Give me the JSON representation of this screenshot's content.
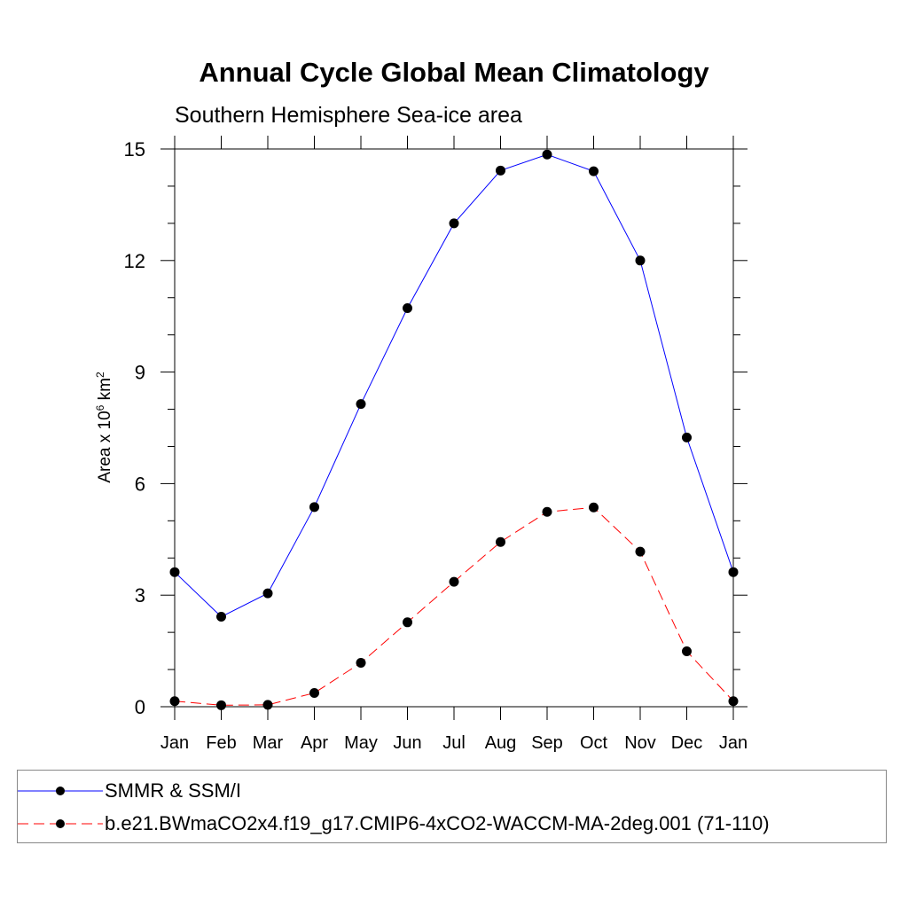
{
  "chart_data": {
    "type": "line",
    "title": "Annual Cycle Global Mean Climatology",
    "subtitle": "Southern Hemisphere Sea-ice area",
    "ylabel": {
      "base": "Area x 10",
      "exp1": "6",
      "unit": " km",
      "exp2": "2"
    },
    "xlabel": "",
    "categories": [
      "Jan",
      "Feb",
      "Mar",
      "Apr",
      "May",
      "Jun",
      "Jul",
      "Aug",
      "Sep",
      "Oct",
      "Nov",
      "Dec",
      "Jan"
    ],
    "ylim": [
      0,
      15
    ],
    "yticks": [
      0,
      3,
      6,
      9,
      12,
      15
    ],
    "yminor_step": 1,
    "grid": false,
    "legend_position": "bottom",
    "series": [
      {
        "name": "SMMR & SSM/I",
        "color": "#0000ff",
        "dash": "solid",
        "values": [
          3.62,
          2.42,
          3.05,
          5.37,
          8.14,
          10.72,
          13.0,
          14.42,
          14.85,
          14.4,
          12.0,
          7.24,
          3.62
        ]
      },
      {
        "name": "b.e21.BWmaCO2x4.f19_g17.CMIP6-4xCO2-WACCM-MA-2deg.001 (71-110)",
        "color": "#ff0000",
        "dash": "dashed",
        "values": [
          0.15,
          0.04,
          0.05,
          0.37,
          1.18,
          2.27,
          3.36,
          4.43,
          5.24,
          5.36,
          4.17,
          1.49,
          0.15
        ]
      }
    ]
  }
}
